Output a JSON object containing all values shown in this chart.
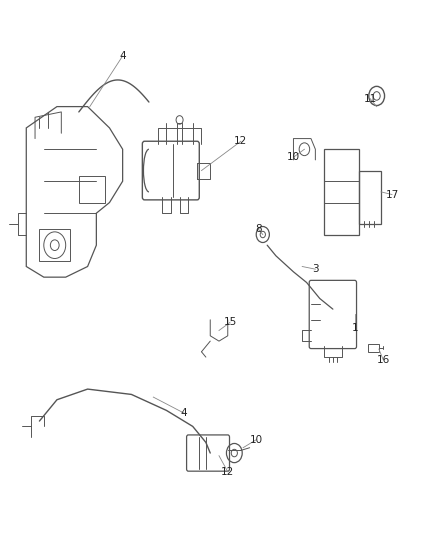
{
  "bg_color": "#ffffff",
  "line_color": "#555555",
  "fig_width": 4.38,
  "fig_height": 5.33
}
